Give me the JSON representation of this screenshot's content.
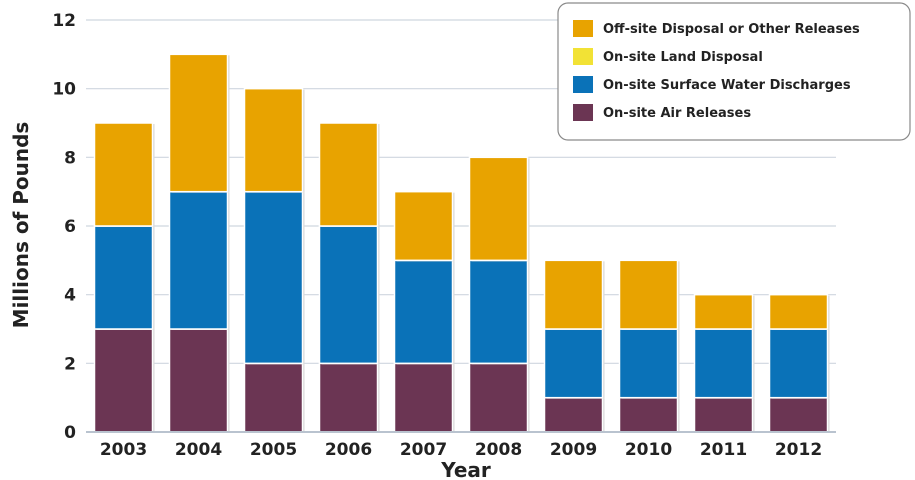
{
  "chart_data": {
    "type": "bar",
    "stacked": true,
    "categories": [
      "2003",
      "2004",
      "2005",
      "2006",
      "2007",
      "2008",
      "2009",
      "2010",
      "2011",
      "2012"
    ],
    "series": [
      {
        "name": "On-site Air Releases",
        "color": "#6b3553",
        "values": [
          3,
          3,
          2,
          2,
          2,
          2,
          1,
          1,
          1,
          1
        ]
      },
      {
        "name": "On-site Surface Water Discharges",
        "color": "#0a72b8",
        "values": [
          3,
          4,
          5,
          4,
          3,
          3,
          2,
          2,
          2,
          2
        ]
      },
      {
        "name": "On-site Land Disposal",
        "color": "#f2e235",
        "values": [
          0,
          0,
          0,
          0,
          0,
          0,
          0,
          0,
          0,
          0
        ]
      },
      {
        "name": "Off-site Disposal or Other Releases",
        "color": "#e8a300",
        "values": [
          3,
          4,
          3,
          3,
          2,
          3,
          2,
          2,
          1,
          1
        ]
      }
    ],
    "legend_order": [
      3,
      2,
      1,
      0
    ],
    "xlabel": "Year",
    "ylabel": "Millions of Pounds",
    "ylim": [
      0,
      12
    ],
    "yticks": [
      0,
      2,
      4,
      6,
      8,
      10,
      12
    ],
    "grid": true,
    "legend_position": "top-right"
  }
}
